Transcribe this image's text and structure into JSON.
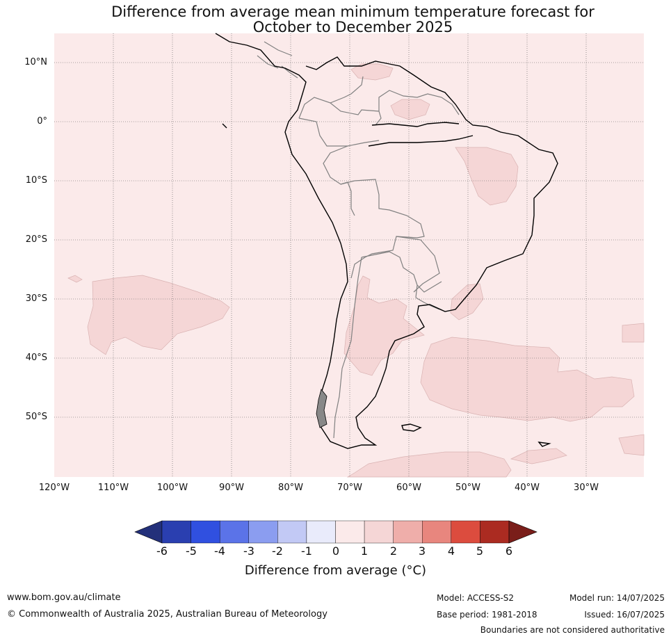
{
  "title": {
    "line1": "Difference from average mean minimum temperature forecast for",
    "line2": "October to December 2025"
  },
  "map": {
    "lat_labels": [
      "10°N",
      "0°",
      "10°S",
      "20°S",
      "30°S",
      "40°S",
      "50°S"
    ],
    "lon_labels": [
      "120°W",
      "110°W",
      "100°W",
      "90°W",
      "80°W",
      "70°W",
      "60°W",
      "50°W",
      "40°W",
      "30°W"
    ],
    "lon_range": [
      -120,
      -20
    ],
    "lat_range": [
      -60,
      15
    ],
    "background_category": "0 to 1",
    "anomaly_regions_category": "1 to 2"
  },
  "colorbar": {
    "ticks": [
      "-6",
      "-5",
      "-4",
      "-3",
      "-2",
      "-1",
      "0",
      "1",
      "2",
      "3",
      "4",
      "5",
      "6"
    ],
    "colors": [
      "#23307a",
      "#2a3fb0",
      "#3050e0",
      "#5b73e8",
      "#8b9df0",
      "#c2c9f5",
      "#e9ebfb",
      "#fbeaea",
      "#f5d6d6",
      "#efaeaa",
      "#e8867e",
      "#dc4c3e",
      "#ab2b21",
      "#7a1e1a"
    ],
    "label": "Difference from average (°C)"
  },
  "footer": {
    "website": "www.bom.gov.au/climate",
    "copyright": "© Commonwealth of Australia 2025, Australian Bureau of Meteorology",
    "model": "Model: ACCESS-S2",
    "base_period": "Base period: 1981-2018",
    "model_run": "Model run: 14/07/2025",
    "issued": "Issued: 16/07/2025",
    "disclaimer": "Boundaries are not considered authoritative"
  }
}
